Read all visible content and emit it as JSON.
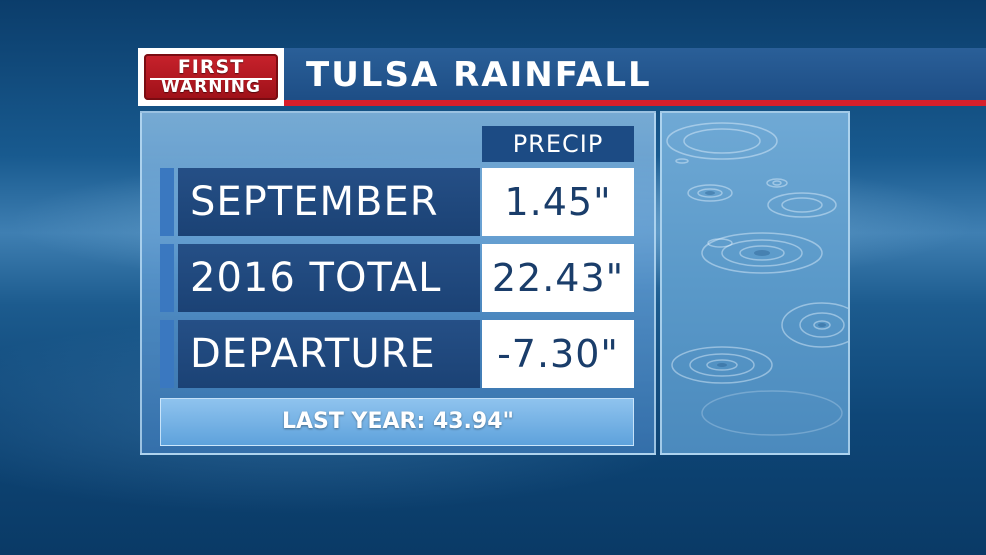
{
  "logo": {
    "line1": "FIRST",
    "line2": "WARNING"
  },
  "header": {
    "title": "TULSA RAINFALL"
  },
  "table": {
    "column_header": "PRECIP",
    "rows": [
      {
        "label": "SEPTEMBER",
        "value": "1.45\""
      },
      {
        "label": "2016 TOTAL",
        "value": "22.43\""
      },
      {
        "label": "DEPARTURE",
        "value": "-7.30\""
      }
    ]
  },
  "footer": {
    "last_year": "LAST YEAR:  43.94\""
  },
  "photo": {
    "icon": "rain-ripples-image"
  },
  "colors": {
    "accent_red": "#d71f2b",
    "header_blue": "#1d4d85",
    "value_text": "#1a3d6a"
  }
}
